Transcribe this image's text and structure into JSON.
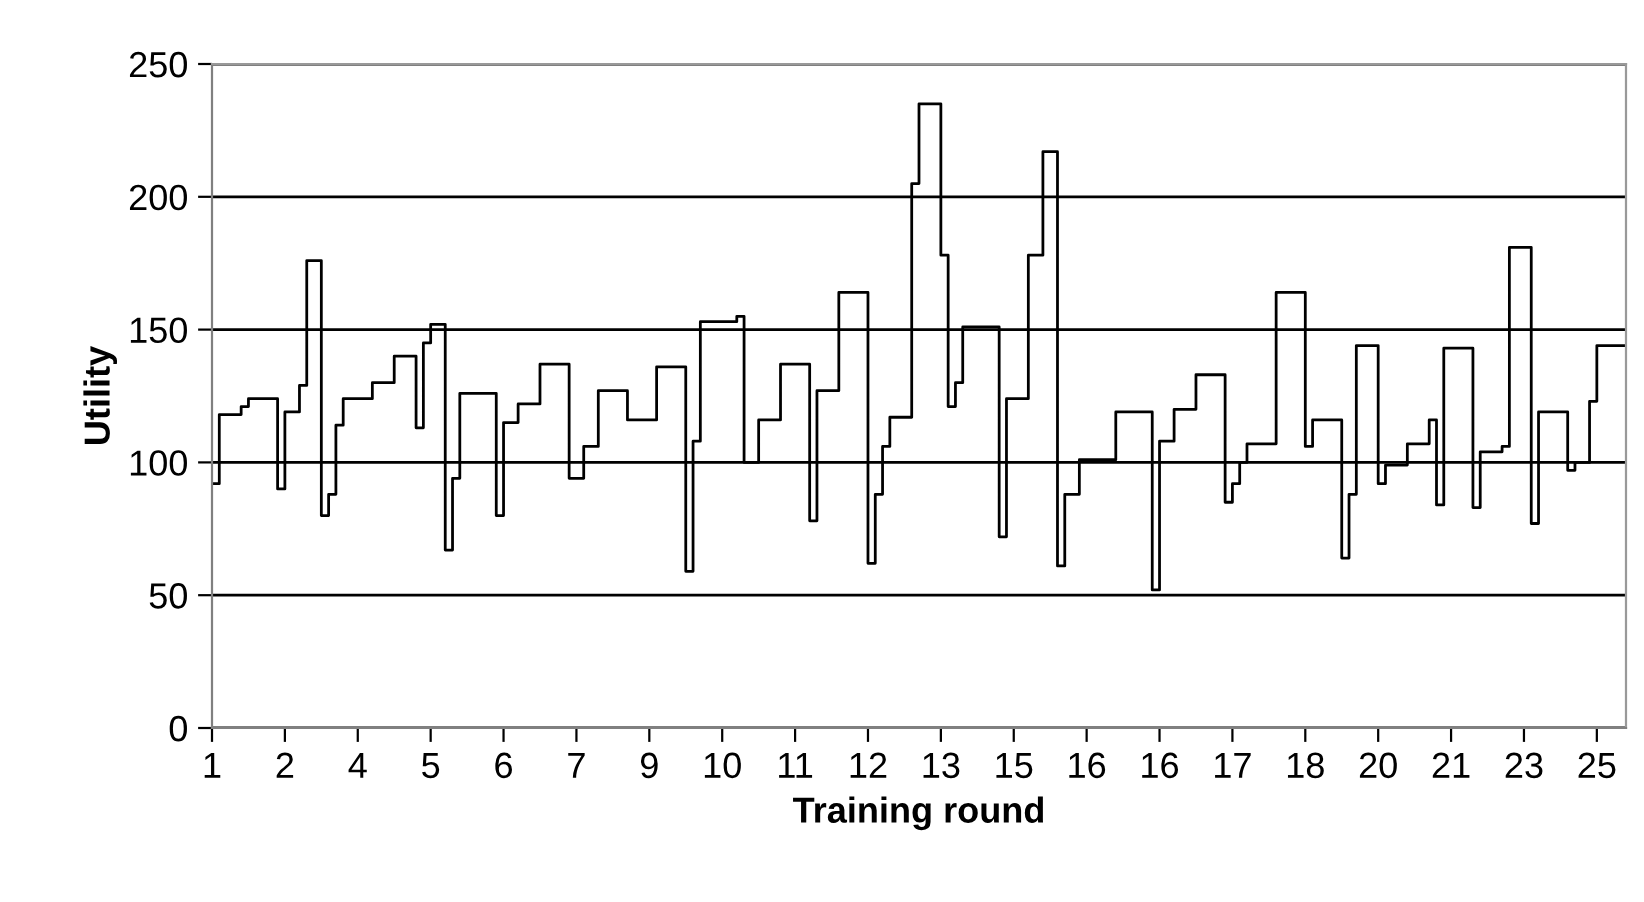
{
  "chart_data": {
    "type": "step",
    "xlabel": "Training round",
    "ylabel": "Utility",
    "categories": [
      "1",
      null,
      null,
      null,
      null,
      null,
      null,
      null,
      null,
      null,
      "2",
      null,
      null,
      null,
      null,
      null,
      null,
      null,
      null,
      null,
      "4",
      null,
      null,
      null,
      null,
      null,
      null,
      null,
      null,
      null,
      "5",
      null,
      null,
      null,
      null,
      null,
      null,
      null,
      null,
      null,
      "6",
      null,
      null,
      null,
      null,
      null,
      null,
      null,
      null,
      null,
      "7",
      null,
      null,
      null,
      null,
      null,
      null,
      null,
      null,
      null,
      "9",
      null,
      null,
      null,
      null,
      null,
      null,
      null,
      null,
      null,
      "10",
      null,
      null,
      null,
      null,
      null,
      null,
      null,
      null,
      null,
      "11",
      null,
      null,
      null,
      null,
      null,
      null,
      null,
      null,
      null,
      "12",
      null,
      null,
      null,
      null,
      null,
      null,
      null,
      null,
      null,
      "13",
      null,
      null,
      null,
      null,
      null,
      null,
      null,
      null,
      null,
      "15",
      null,
      null,
      null,
      null,
      null,
      null,
      null,
      null,
      null,
      "16",
      null,
      null,
      null,
      null,
      null,
      null,
      null,
      null,
      null,
      "16",
      null,
      null,
      null,
      null,
      null,
      null,
      null,
      null,
      null,
      "17",
      null,
      null,
      null,
      null,
      null,
      null,
      null,
      null,
      null,
      "18",
      null,
      null,
      null,
      null,
      null,
      null,
      null,
      null,
      null,
      "20",
      null,
      null,
      null,
      null,
      null,
      null,
      null,
      null,
      null,
      "21",
      null,
      null,
      null,
      null,
      null,
      null,
      null,
      null,
      null,
      "23",
      null,
      null,
      null,
      null,
      null,
      null,
      null,
      null,
      null,
      "25",
      null,
      null,
      null,
      null
    ],
    "ylim": [
      0,
      250
    ],
    "yticks": [
      0,
      50,
      100,
      150,
      200,
      250
    ],
    "grid": "y",
    "marker": "none",
    "line_style": "solid",
    "series": [
      {
        "color": "#000000",
        "values": [
          92,
          118,
          118,
          118,
          121,
          124,
          124,
          124,
          124,
          90,
          119,
          119,
          129,
          176,
          176,
          80,
          88,
          114,
          124,
          124,
          124,
          124,
          130,
          130,
          130,
          140,
          140,
          140,
          113,
          145,
          152,
          152,
          67,
          94,
          126,
          126,
          126,
          126,
          126,
          80,
          115,
          115,
          122,
          122,
          122,
          137,
          137,
          137,
          137,
          94,
          94,
          106,
          106,
          127,
          127,
          127,
          127,
          116,
          116,
          116,
          116,
          136,
          136,
          136,
          136,
          59,
          108,
          153,
          153,
          153,
          153,
          153,
          155,
          100,
          100,
          116,
          116,
          116,
          137,
          137,
          137,
          137,
          78,
          127,
          127,
          127,
          164,
          164,
          164,
          164,
          62,
          88,
          106,
          117,
          117,
          117,
          205,
          235,
          235,
          235,
          178,
          121,
          130,
          151,
          151,
          151,
          151,
          151,
          72,
          124,
          124,
          124,
          178,
          178,
          217,
          217,
          61,
          88,
          88,
          101,
          101,
          101,
          101,
          101,
          119,
          119,
          119,
          119,
          119,
          52,
          108,
          108,
          120,
          120,
          120,
          133,
          133,
          133,
          133,
          85,
          92,
          100,
          107,
          107,
          107,
          107,
          164,
          164,
          164,
          164,
          106,
          116,
          116,
          116,
          116,
          64,
          88,
          144,
          144,
          144,
          92,
          99,
          99,
          99,
          107,
          107,
          107,
          116,
          84,
          143,
          143,
          143,
          143,
          83,
          104,
          104,
          104,
          106,
          181,
          181,
          181,
          77,
          119,
          119,
          119,
          119,
          97,
          100,
          100,
          123,
          144,
          144,
          144,
          144,
          144
        ]
      }
    ]
  }
}
